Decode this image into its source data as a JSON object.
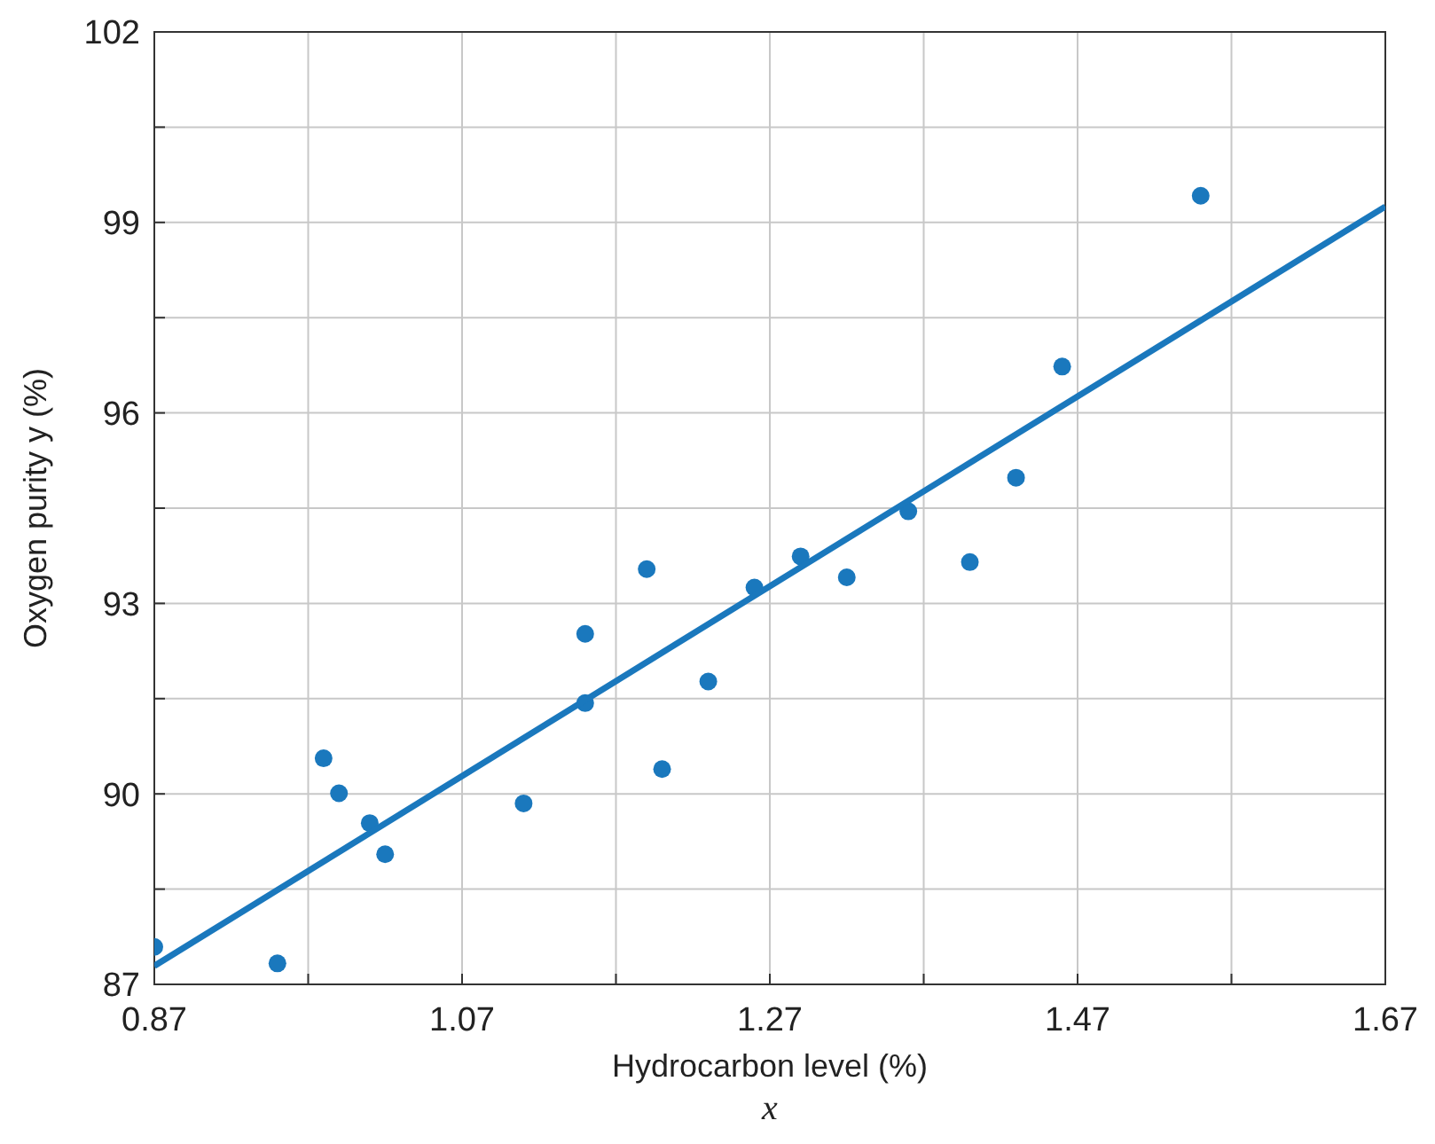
{
  "chart_data": {
    "type": "scatter",
    "xlabel": "Hydrocarbon level (%)\nx",
    "ylabel": "Oxygen purity y (%)",
    "xlim": [
      0.87,
      1.67
    ],
    "ylim": [
      87,
      102
    ],
    "xticks": [
      0.87,
      {
        "value": 0.97,
        "label": null
      },
      1.07,
      {
        "value": 1.17,
        "label": null
      },
      1.27,
      {
        "value": 1.37,
        "label": null
      },
      1.47,
      {
        "value": 1.57,
        "label": null
      },
      1.67
    ],
    "yticks": [
      87,
      {
        "value": 88.5,
        "label": null
      },
      90,
      {
        "value": 91.5,
        "label": null
      },
      93,
      {
        "value": 94.5,
        "label": null
      },
      96,
      {
        "value": 97.5,
        "label": null
      },
      99,
      {
        "value": 100.5,
        "label": null
      },
      102
    ],
    "grid": true,
    "series": [
      {
        "marker": "circle",
        "color": "#1a78bd",
        "x": [
          0.99,
          1.02,
          1.15,
          1.29,
          1.46,
          1.36,
          0.87,
          1.23,
          1.55,
          1.4,
          1.19,
          1.15,
          0.98,
          1.01,
          1.11,
          1.2,
          1.26,
          1.32,
          1.43,
          0.95
        ],
        "values": [
          90.01,
          89.05,
          91.43,
          93.74,
          96.73,
          94.45,
          87.59,
          91.77,
          99.42,
          93.65,
          93.54,
          92.52,
          90.56,
          89.54,
          89.85,
          90.39,
          93.25,
          93.41,
          94.98,
          87.33
        ]
      },
      {
        "type": "line",
        "marker": "none",
        "color": "#1a78bd",
        "x": [
          0.87,
          1.67
        ],
        "values": [
          87.29,
          99.25
        ]
      }
    ]
  }
}
